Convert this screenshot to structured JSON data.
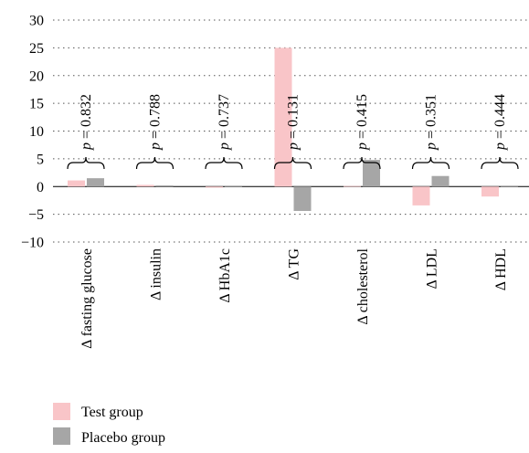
{
  "chart_data": {
    "type": "bar",
    "title": "",
    "xlabel": "",
    "ylabel": "",
    "ylim": [
      -10,
      30
    ],
    "yticks": [
      30,
      25,
      20,
      15,
      10,
      5,
      0,
      -5,
      -10
    ],
    "ytick_labels": [
      "30",
      "25",
      "20",
      "15",
      "10",
      "5",
      "0",
      "−5",
      "−10"
    ],
    "grid": true,
    "legend_position": "bottom-left",
    "categories": [
      "Δ fasting glucose",
      "Δ insulin",
      "Δ HbA1c",
      "Δ TG",
      "Δ cholesterol",
      "Δ LDL",
      "Δ HDL"
    ],
    "series": [
      {
        "name": "Test group",
        "color": "#f9c5c8",
        "values": [
          1.1,
          0.3,
          -0.2,
          25.0,
          0.1,
          -3.4,
          -1.8
        ]
      },
      {
        "name": "Placebo group",
        "color": "#a6a6a6",
        "values": [
          1.5,
          0.2,
          0.0,
          -4.4,
          4.8,
          1.9,
          0.0
        ]
      }
    ],
    "p_values": [
      "0.832",
      "0.788",
      "0.737",
      "0.131",
      "0.415",
      "0.351",
      "0.444"
    ],
    "p_label_prefix": "p",
    "p_label_eq": " = "
  },
  "legend": {
    "items": [
      {
        "label": "Test group",
        "color": "#f9c5c8"
      },
      {
        "label": "Placebo group",
        "color": "#a6a6a6"
      }
    ]
  }
}
